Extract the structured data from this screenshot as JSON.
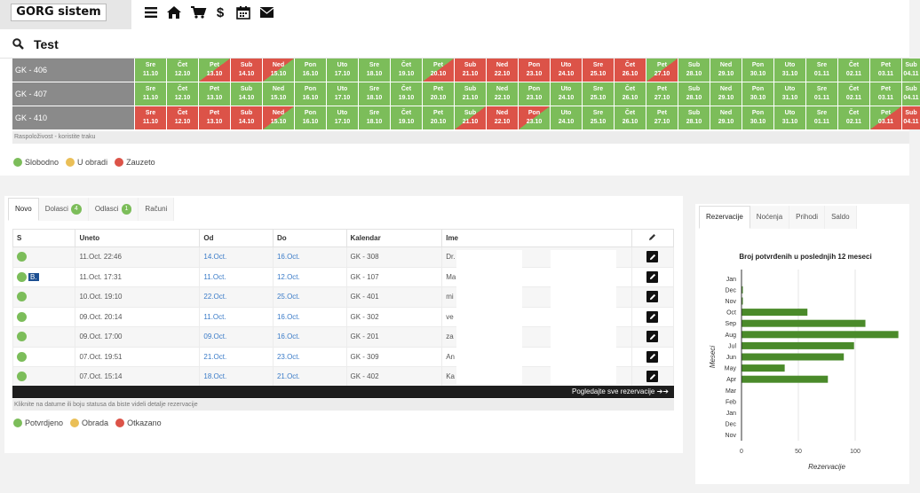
{
  "brand": "GORG sistem",
  "nav_icons": [
    "menu-icon",
    "home-icon",
    "cart-icon",
    "dollar-icon",
    "calendar-icon",
    "envelope-icon"
  ],
  "search": {
    "label": "Test"
  },
  "availability": {
    "rows": [
      {
        "room": "GK - 406",
        "status": [
          "free",
          "free",
          "in",
          "busy",
          "out",
          "free",
          "free",
          "free",
          "free",
          "in",
          "busy",
          "busy",
          "busy",
          "busy",
          "busy",
          "busy",
          "in",
          "free",
          "free",
          "free",
          "free",
          "free",
          "free",
          "free",
          "free"
        ]
      },
      {
        "room": "GK - 407",
        "status": [
          "free",
          "free",
          "free",
          "free",
          "free",
          "free",
          "free",
          "free",
          "free",
          "free",
          "free",
          "free",
          "free",
          "free",
          "free",
          "free",
          "free",
          "free",
          "free",
          "free",
          "free",
          "free",
          "free",
          "free",
          "free"
        ]
      },
      {
        "room": "GK - 410",
        "status": [
          "busy",
          "busy",
          "busy",
          "busy",
          "out",
          "free",
          "free",
          "free",
          "free",
          "free",
          "in",
          "busy",
          "out",
          "free",
          "free",
          "free",
          "free",
          "free",
          "free",
          "free",
          "free",
          "free",
          "free",
          "in",
          "busy"
        ]
      }
    ],
    "days": [
      {
        "d": "Sre",
        "n": "11.10"
      },
      {
        "d": "Čet",
        "n": "12.10"
      },
      {
        "d": "Pet",
        "n": "13.10"
      },
      {
        "d": "Sub",
        "n": "14.10"
      },
      {
        "d": "Ned",
        "n": "15.10"
      },
      {
        "d": "Pon",
        "n": "16.10"
      },
      {
        "d": "Uto",
        "n": "17.10"
      },
      {
        "d": "Sre",
        "n": "18.10"
      },
      {
        "d": "Čet",
        "n": "19.10"
      },
      {
        "d": "Pet",
        "n": "20.10"
      },
      {
        "d": "Sub",
        "n": "21.10"
      },
      {
        "d": "Ned",
        "n": "22.10"
      },
      {
        "d": "Pon",
        "n": "23.10"
      },
      {
        "d": "Uto",
        "n": "24.10"
      },
      {
        "d": "Sre",
        "n": "25.10"
      },
      {
        "d": "Čet",
        "n": "26.10"
      },
      {
        "d": "Pet",
        "n": "27.10"
      },
      {
        "d": "Sub",
        "n": "28.10"
      },
      {
        "d": "Ned",
        "n": "29.10"
      },
      {
        "d": "Pon",
        "n": "30.10"
      },
      {
        "d": "Uto",
        "n": "31.10"
      },
      {
        "d": "Sre",
        "n": "01.11"
      },
      {
        "d": "Čet",
        "n": "02.11"
      },
      {
        "d": "Pet",
        "n": "03.11"
      },
      {
        "d": "Sub",
        "n": "04.11"
      }
    ],
    "note": "Raspoloživost - koristite traku",
    "legend": [
      "Slobodno",
      "U obradi",
      "Zauzeto"
    ],
    "colors": {
      "free": "#7cbd5a",
      "pending": "#eabf57",
      "busy": "#dc5348"
    }
  },
  "reservations": {
    "tabs": [
      {
        "label": "Novo",
        "badge": ""
      },
      {
        "label": "Dolasci",
        "badge": "4"
      },
      {
        "label": "Odlasci",
        "badge": "1"
      },
      {
        "label": "Računi",
        "badge": ""
      }
    ],
    "columns": [
      "S",
      "Uneto",
      "Od",
      "Do",
      "Kalendar",
      "Ime"
    ],
    "rows": [
      {
        "uneto": "11.Oct. 22:46",
        "od": "14.Oct.",
        "do": "16.Oct.",
        "kal": "GK - 308",
        "ime": "Dr."
      },
      {
        "uneto": "11.Oct. 17:31",
        "od": "11.Oct.",
        "do": "12.Oct.",
        "kal": "GK - 107",
        "ime": "Ma"
      },
      {
        "uneto": "10.Oct. 19:10",
        "od": "22.Oct.",
        "do": "25.Oct.",
        "kal": "GK - 401",
        "ime": "mi"
      },
      {
        "uneto": "09.Oct. 20:14",
        "od": "11.Oct.",
        "do": "16.Oct.",
        "kal": "GK - 302",
        "ime": "ve"
      },
      {
        "uneto": "09.Oct. 17:00",
        "od": "09.Oct.",
        "do": "16.Oct.",
        "kal": "GK - 201",
        "ime": "za"
      },
      {
        "uneto": "07.Oct. 19:51",
        "od": "21.Oct.",
        "do": "23.Oct.",
        "kal": "GK - 309",
        "ime": "An"
      },
      {
        "uneto": "07.Oct. 15:14",
        "od": "18.Oct.",
        "do": "21.Oct.",
        "kal": "GK - 402",
        "ime": "Ka"
      }
    ],
    "tag_b": "B.",
    "see_all": "Pogledajte sve rezervacije ➔➔",
    "note": "Kliknite na datume ili boju statusa da biste videli detalje rezervacije",
    "legend": [
      "Potvrdjeno",
      "Obrada",
      "Otkazano"
    ]
  },
  "stats": {
    "tabs": [
      "Rezervacije",
      "Noćenja",
      "Prihodi",
      "Saldo"
    ],
    "chart_data": {
      "type": "bar",
      "orientation": "horizontal",
      "title": "Broj potvrđenih u poslednjih 12 meseci",
      "xlabel": "Rezervacije",
      "ylabel": "Meseci",
      "categories": [
        "Jan",
        "Dec",
        "Nov",
        "Oct",
        "Sep",
        "Aug",
        "Jul",
        "Jun",
        "May",
        "Apr",
        "Mar",
        "Feb",
        "Jan",
        "Dec",
        "Nov"
      ],
      "values": [
        0,
        1,
        1,
        58,
        109,
        138,
        99,
        90,
        38,
        76,
        0,
        0,
        0,
        0,
        0
      ],
      "xticks": [
        0,
        50,
        100
      ],
      "xlim": [
        0,
        145
      ],
      "color": "#4a8a2a"
    }
  }
}
